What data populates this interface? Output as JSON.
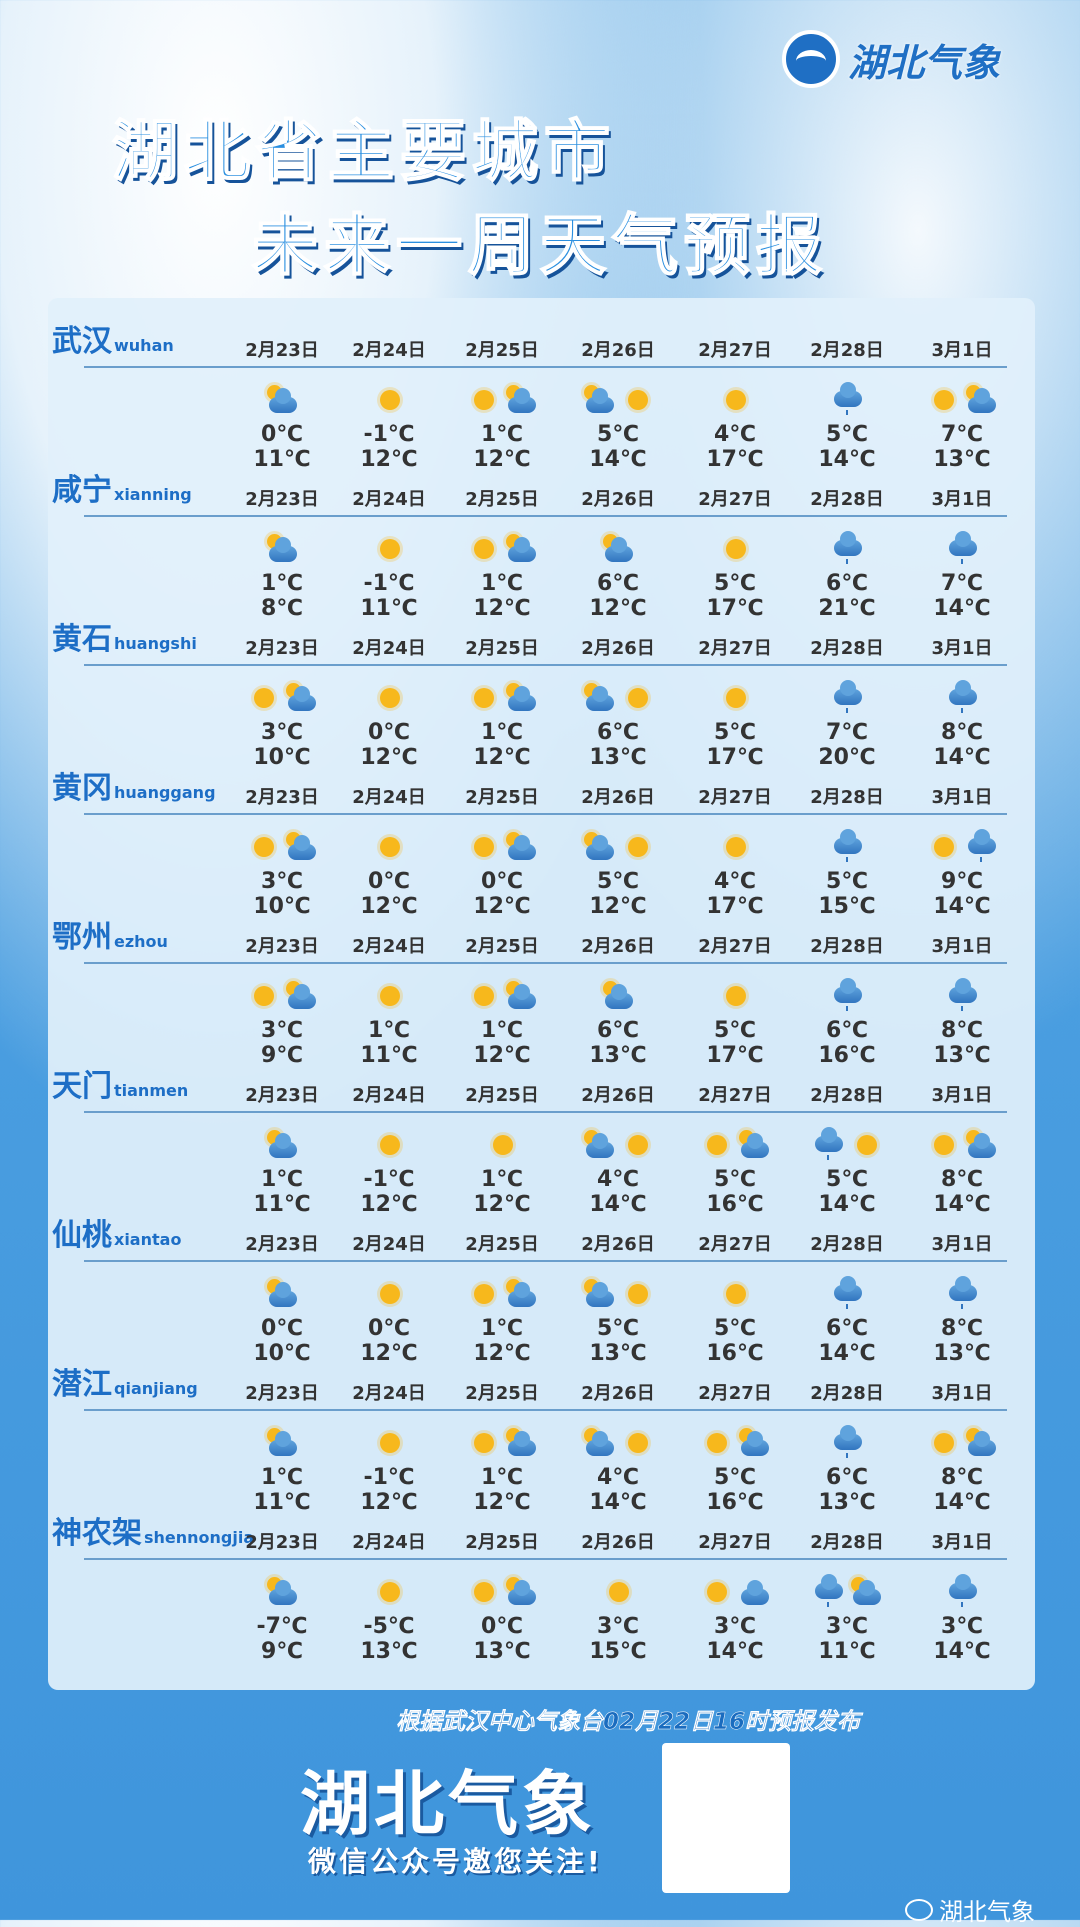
{
  "logo": {
    "text": "湖北气象"
  },
  "title": {
    "line1": "湖北省主要城市",
    "line2": "未来一周天气预报"
  },
  "dates": [
    "2月23日",
    "2月24日",
    "2月25日",
    "2月26日",
    "2月27日",
    "2月28日",
    "3月1日"
  ],
  "icon_legend": {
    "s": "sunny",
    "pc": "partly-cloudy",
    "c": "cloudy",
    "r": "light-rain"
  },
  "cities": [
    {
      "name": "武汉",
      "pinyin": "wuhan",
      "icons": [
        [
          "pc"
        ],
        [
          "s"
        ],
        [
          "s",
          "pc"
        ],
        [
          "pc",
          "s"
        ],
        [
          "s"
        ],
        [
          "r"
        ],
        [
          "s",
          "pc"
        ]
      ],
      "low": [
        "0℃",
        "-1℃",
        "1℃",
        "5℃",
        "4℃",
        "5℃",
        "7℃"
      ],
      "high": [
        "11℃",
        "12℃",
        "12℃",
        "14℃",
        "17℃",
        "14℃",
        "13℃"
      ]
    },
    {
      "name": "咸宁",
      "pinyin": "xianning",
      "icons": [
        [
          "pc"
        ],
        [
          "s"
        ],
        [
          "s",
          "pc"
        ],
        [
          "pc"
        ],
        [
          "s"
        ],
        [
          "r"
        ],
        [
          "r"
        ]
      ],
      "low": [
        "1℃",
        "-1℃",
        "1℃",
        "6℃",
        "5℃",
        "6℃",
        "7℃"
      ],
      "high": [
        "8℃",
        "11℃",
        "12℃",
        "12℃",
        "17℃",
        "21℃",
        "14℃"
      ]
    },
    {
      "name": "黄石",
      "pinyin": "huangshi",
      "icons": [
        [
          "s",
          "pc"
        ],
        [
          "s"
        ],
        [
          "s",
          "pc"
        ],
        [
          "pc",
          "s"
        ],
        [
          "s"
        ],
        [
          "r"
        ],
        [
          "r"
        ]
      ],
      "low": [
        "3℃",
        "0℃",
        "1℃",
        "6℃",
        "5℃",
        "7℃",
        "8℃"
      ],
      "high": [
        "10℃",
        "12℃",
        "12℃",
        "13℃",
        "17℃",
        "20℃",
        "14℃"
      ]
    },
    {
      "name": "黄冈",
      "pinyin": "huanggang",
      "icons": [
        [
          "s",
          "pc"
        ],
        [
          "s"
        ],
        [
          "s",
          "pc"
        ],
        [
          "pc",
          "s"
        ],
        [
          "s"
        ],
        [
          "r"
        ],
        [
          "s",
          "r"
        ]
      ],
      "low": [
        "3℃",
        "0℃",
        "0℃",
        "5℃",
        "4℃",
        "5℃",
        "9℃"
      ],
      "high": [
        "10℃",
        "12℃",
        "12℃",
        "12℃",
        "17℃",
        "15℃",
        "14℃"
      ]
    },
    {
      "name": "鄂州",
      "pinyin": "ezhou",
      "icons": [
        [
          "s",
          "pc"
        ],
        [
          "s"
        ],
        [
          "s",
          "pc"
        ],
        [
          "pc"
        ],
        [
          "s"
        ],
        [
          "r"
        ],
        [
          "r"
        ]
      ],
      "low": [
        "3℃",
        "1℃",
        "1℃",
        "6℃",
        "5℃",
        "6℃",
        "8℃"
      ],
      "high": [
        "9℃",
        "11℃",
        "12℃",
        "13℃",
        "17℃",
        "16℃",
        "13℃"
      ]
    },
    {
      "name": "天门",
      "pinyin": "tianmen",
      "icons": [
        [
          "pc"
        ],
        [
          "s"
        ],
        [
          "s"
        ],
        [
          "pc",
          "s"
        ],
        [
          "s",
          "pc"
        ],
        [
          "r",
          "s"
        ],
        [
          "s",
          "pc"
        ]
      ],
      "low": [
        "1℃",
        "-1℃",
        "1℃",
        "4℃",
        "5℃",
        "5℃",
        "8℃"
      ],
      "high": [
        "11℃",
        "12℃",
        "12℃",
        "14℃",
        "16℃",
        "14℃",
        "14℃"
      ]
    },
    {
      "name": "仙桃",
      "pinyin": "xiantao",
      "icons": [
        [
          "pc"
        ],
        [
          "s"
        ],
        [
          "s",
          "pc"
        ],
        [
          "pc",
          "s"
        ],
        [
          "s"
        ],
        [
          "r"
        ],
        [
          "r"
        ]
      ],
      "low": [
        "0℃",
        "0℃",
        "1℃",
        "5℃",
        "5℃",
        "6℃",
        "8℃"
      ],
      "high": [
        "10℃",
        "12℃",
        "12℃",
        "13℃",
        "16℃",
        "14℃",
        "13℃"
      ]
    },
    {
      "name": "潜江",
      "pinyin": "qianjiang",
      "icons": [
        [
          "pc"
        ],
        [
          "s"
        ],
        [
          "s",
          "pc"
        ],
        [
          "pc",
          "s"
        ],
        [
          "s",
          "pc"
        ],
        [
          "r"
        ],
        [
          "s",
          "pc"
        ]
      ],
      "low": [
        "1℃",
        "-1℃",
        "1℃",
        "4℃",
        "5℃",
        "6℃",
        "8℃"
      ],
      "high": [
        "11℃",
        "12℃",
        "12℃",
        "14℃",
        "16℃",
        "13℃",
        "14℃"
      ]
    },
    {
      "name": "神农架",
      "pinyin": "shennongjia",
      "icons": [
        [
          "pc"
        ],
        [
          "s"
        ],
        [
          "s",
          "pc"
        ],
        [
          "s"
        ],
        [
          "s",
          "c"
        ],
        [
          "r",
          "pc"
        ],
        [
          "r"
        ]
      ],
      "low": [
        "-7℃",
        "-5℃",
        "0℃",
        "3℃",
        "3℃",
        "3℃",
        "3℃"
      ],
      "high": [
        "9℃",
        "13℃",
        "13℃",
        "15℃",
        "14℃",
        "11℃",
        "14℃"
      ]
    }
  ],
  "footer": {
    "note": "根据武汉中心气象台02月22日16时预报发布",
    "brand": "湖北气象",
    "subtitle": "微信公众号邀您关注!",
    "watermark": "湖北气象"
  }
}
